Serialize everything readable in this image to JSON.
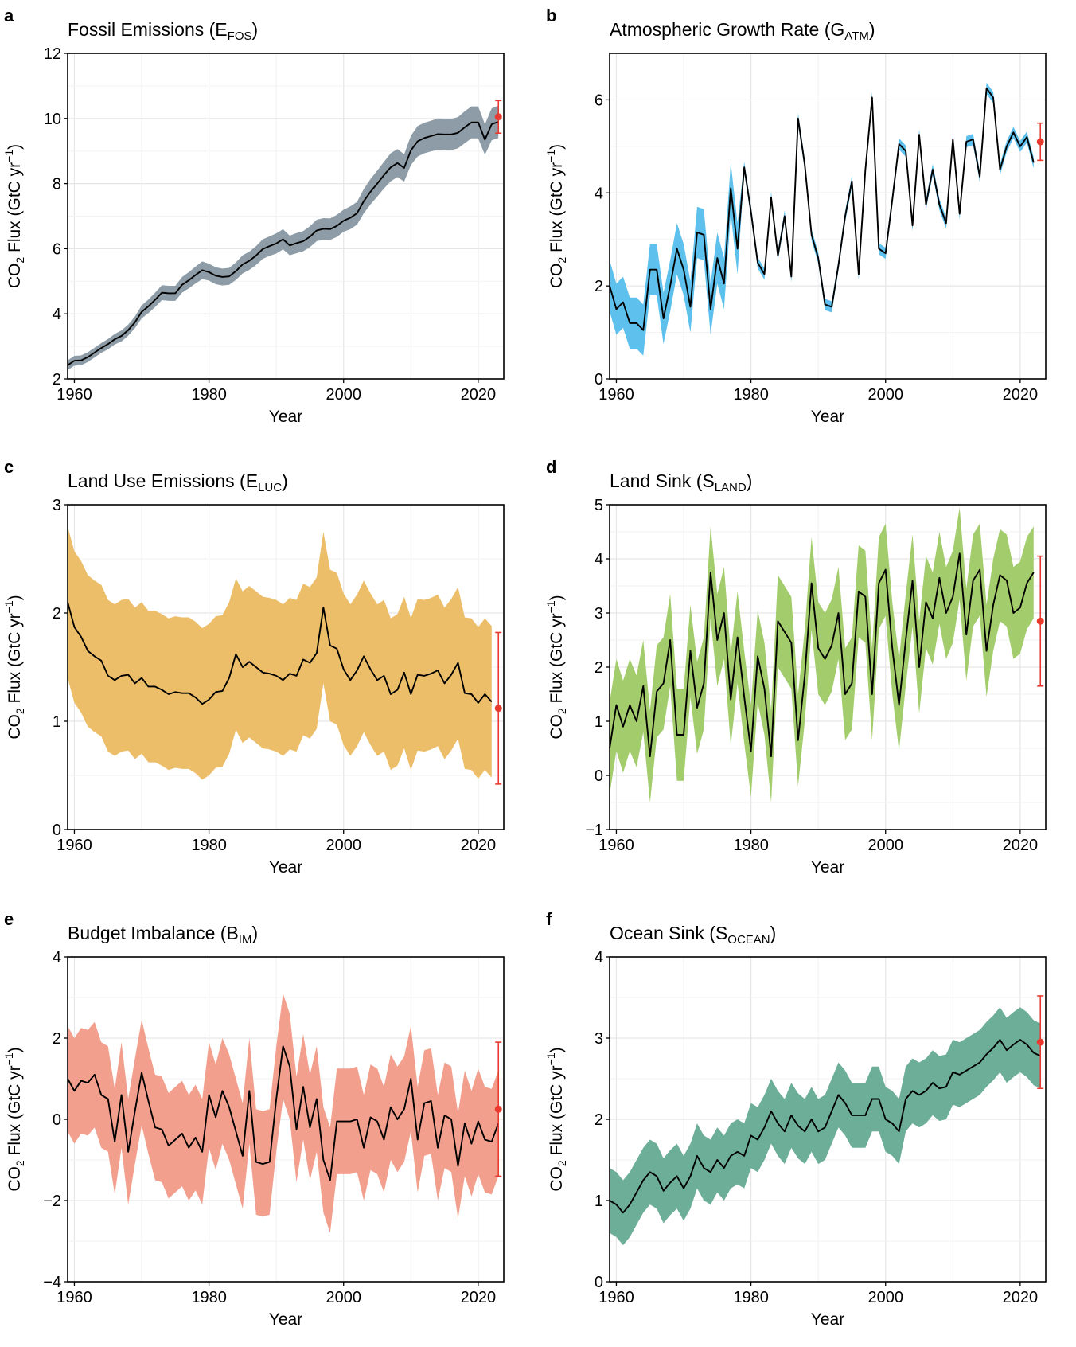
{
  "figure": {
    "background": "#ffffff"
  },
  "chart_data": [
    {
      "id": "a",
      "type": "line",
      "panel_letter": "a",
      "title": "Fossil Emissions (E",
      "title_sub": "FOS",
      "title_end": ")",
      "xlabel": "Year",
      "ylabel_pre": "CO",
      "ylabel_sub": "2",
      "ylabel_mid": " Flux (GtC yr",
      "ylabel_sup": "−1",
      "ylabel_end": ")",
      "xlim": [
        1959,
        2023.8
      ],
      "ylim": [
        2,
        12
      ],
      "xticks": [
        1960,
        1980,
        2000,
        2020
      ],
      "yticks": [
        2,
        4,
        6,
        8,
        10,
        12
      ],
      "grid": true,
      "band_color": "#8d9ca6",
      "x_start": 1959,
      "values": [
        2.42,
        2.56,
        2.57,
        2.67,
        2.81,
        2.95,
        3.07,
        3.22,
        3.32,
        3.5,
        3.74,
        4.06,
        4.23,
        4.43,
        4.65,
        4.63,
        4.63,
        4.89,
        5.03,
        5.19,
        5.34,
        5.28,
        5.17,
        5.13,
        5.15,
        5.31,
        5.52,
        5.63,
        5.79,
        5.99,
        6.08,
        6.16,
        6.29,
        6.1,
        6.17,
        6.23,
        6.37,
        6.56,
        6.61,
        6.6,
        6.7,
        6.86,
        6.95,
        7.09,
        7.46,
        7.75,
        8.0,
        8.26,
        8.5,
        8.63,
        8.48,
        9.02,
        9.3,
        9.4,
        9.46,
        9.52,
        9.51,
        9.51,
        9.56,
        9.73,
        9.88,
        9.88,
        9.35,
        9.82,
        9.9
      ],
      "band_halfwidth": [
        0.15,
        0.15,
        0.15,
        0.15,
        0.15,
        0.15,
        0.16,
        0.16,
        0.17,
        0.17,
        0.18,
        0.2,
        0.21,
        0.22,
        0.23,
        0.23,
        0.23,
        0.24,
        0.25,
        0.26,
        0.27,
        0.26,
        0.26,
        0.26,
        0.26,
        0.27,
        0.28,
        0.28,
        0.29,
        0.3,
        0.3,
        0.31,
        0.31,
        0.3,
        0.31,
        0.31,
        0.32,
        0.33,
        0.33,
        0.33,
        0.34,
        0.34,
        0.35,
        0.35,
        0.37,
        0.39,
        0.4,
        0.41,
        0.43,
        0.43,
        0.42,
        0.45,
        0.47,
        0.47,
        0.47,
        0.48,
        0.48,
        0.48,
        0.48,
        0.49,
        0.49,
        0.49,
        0.47,
        0.49,
        0.5
      ],
      "projection": {
        "x": 2023,
        "y": 10.05,
        "low": 9.55,
        "high": 10.55,
        "color": "#e83a2f"
      }
    },
    {
      "id": "b",
      "type": "line",
      "panel_letter": "b",
      "title": "Atmospheric Growth Rate (G",
      "title_sub": "ATM",
      "title_end": ")",
      "xlabel": "Year",
      "ylabel_pre": "CO",
      "ylabel_sub": "2",
      "ylabel_mid": " Flux (GtC yr",
      "ylabel_sup": "−1",
      "ylabel_end": ")",
      "xlim": [
        1959,
        2023.8
      ],
      "ylim": [
        0,
        7
      ],
      "xticks": [
        1960,
        1980,
        2000,
        2020
      ],
      "yticks": [
        0,
        2,
        4,
        6
      ],
      "grid": true,
      "band_color": "#5ec0ec",
      "x_start": 1959,
      "values": [
        2.0,
        1.5,
        1.65,
        1.2,
        1.2,
        1.05,
        2.35,
        2.35,
        1.3,
        2.0,
        2.8,
        2.35,
        1.55,
        3.15,
        3.1,
        1.5,
        2.6,
        2.05,
        4.1,
        2.8,
        4.55,
        3.6,
        2.5,
        2.25,
        3.9,
        2.65,
        3.5,
        2.2,
        5.6,
        4.6,
        3.1,
        2.6,
        1.6,
        1.55,
        2.45,
        3.5,
        4.25,
        2.25,
        4.5,
        6.05,
        2.8,
        2.7,
        3.85,
        5.05,
        4.9,
        3.3,
        5.25,
        3.75,
        4.5,
        3.75,
        3.35,
        5.15,
        3.55,
        5.1,
        5.15,
        4.35,
        6.25,
        6.05,
        4.5,
        5.0,
        5.3,
        5.0,
        5.2,
        4.65
      ],
      "band_halfwidth": [
        0.55,
        0.55,
        0.55,
        0.55,
        0.55,
        0.55,
        0.55,
        0.55,
        0.55,
        0.55,
        0.55,
        0.55,
        0.55,
        0.55,
        0.55,
        0.55,
        0.55,
        0.55,
        0.55,
        0.55,
        0.12,
        0.12,
        0.12,
        0.12,
        0.12,
        0.12,
        0.12,
        0.12,
        0.12,
        0.12,
        0.12,
        0.12,
        0.12,
        0.12,
        0.12,
        0.12,
        0.12,
        0.12,
        0.12,
        0.12,
        0.12,
        0.12,
        0.12,
        0.12,
        0.12,
        0.12,
        0.12,
        0.12,
        0.12,
        0.12,
        0.12,
        0.12,
        0.12,
        0.12,
        0.12,
        0.12,
        0.12,
        0.12,
        0.12,
        0.12,
        0.12,
        0.12,
        0.12,
        0.12
      ],
      "projection": {
        "x": 2023,
        "y": 5.1,
        "low": 4.7,
        "high": 5.5,
        "color": "#e83a2f"
      }
    },
    {
      "id": "c",
      "type": "line",
      "panel_letter": "c",
      "title": "Land Use Emissions (E",
      "title_sub": "LUC",
      "title_end": ")",
      "xlabel": "Year",
      "ylabel_pre": "CO",
      "ylabel_sub": "2",
      "ylabel_mid": " Flux (GtC yr",
      "ylabel_sup": "−1",
      "ylabel_end": ")",
      "xlim": [
        1959,
        2023.8
      ],
      "ylim": [
        0,
        3
      ],
      "xticks": [
        1960,
        1980,
        2000,
        2020
      ],
      "yticks": [
        0,
        1,
        2,
        3
      ],
      "grid": true,
      "band_color": "#edbe6a",
      "x_start": 1959,
      "values": [
        2.1,
        1.87,
        1.78,
        1.65,
        1.6,
        1.56,
        1.42,
        1.38,
        1.42,
        1.43,
        1.35,
        1.4,
        1.32,
        1.32,
        1.29,
        1.25,
        1.27,
        1.26,
        1.26,
        1.22,
        1.16,
        1.2,
        1.27,
        1.28,
        1.4,
        1.62,
        1.5,
        1.55,
        1.5,
        1.45,
        1.44,
        1.42,
        1.38,
        1.44,
        1.42,
        1.57,
        1.54,
        1.63,
        2.05,
        1.7,
        1.67,
        1.48,
        1.38,
        1.47,
        1.6,
        1.48,
        1.38,
        1.42,
        1.25,
        1.29,
        1.45,
        1.25,
        1.43,
        1.42,
        1.44,
        1.47,
        1.35,
        1.43,
        1.54,
        1.26,
        1.25,
        1.17,
        1.25,
        1.18
      ],
      "band_halfwidth": [
        0.7,
        0.7,
        0.7,
        0.7,
        0.7,
        0.7,
        0.7,
        0.7,
        0.7,
        0.7,
        0.7,
        0.7,
        0.7,
        0.7,
        0.7,
        0.7,
        0.7,
        0.7,
        0.7,
        0.7,
        0.7,
        0.7,
        0.7,
        0.7,
        0.7,
        0.7,
        0.7,
        0.7,
        0.7,
        0.7,
        0.7,
        0.7,
        0.7,
        0.7,
        0.7,
        0.7,
        0.7,
        0.7,
        0.7,
        0.7,
        0.7,
        0.7,
        0.7,
        0.7,
        0.7,
        0.7,
        0.7,
        0.7,
        0.7,
        0.7,
        0.7,
        0.7,
        0.7,
        0.7,
        0.7,
        0.7,
        0.7,
        0.7,
        0.7,
        0.7,
        0.7,
        0.7,
        0.7,
        0.7
      ],
      "projection": {
        "x": 2023,
        "y": 1.12,
        "low": 0.42,
        "high": 1.82,
        "color": "#e83a2f"
      }
    },
    {
      "id": "d",
      "type": "line",
      "panel_letter": "d",
      "title": "Land Sink (S",
      "title_sub": "LAND",
      "title_end": ")",
      "xlabel": "Year",
      "ylabel_pre": "CO",
      "ylabel_sub": "2",
      "ylabel_mid": " Flux (GtC yr",
      "ylabel_sup": "−1",
      "ylabel_end": ")",
      "xlim": [
        1959,
        2023.8
      ],
      "ylim": [
        -1,
        5
      ],
      "xticks": [
        1960,
        1980,
        2000,
        2020
      ],
      "yticks": [
        -1,
        0,
        1,
        2,
        3,
        4,
        5
      ],
      "grid": true,
      "band_color": "#a3cd6c",
      "x_start": 1959,
      "values": [
        0.5,
        1.3,
        0.9,
        1.3,
        1.0,
        1.65,
        0.35,
        1.55,
        1.7,
        2.5,
        0.75,
        0.75,
        2.3,
        1.25,
        1.7,
        3.75,
        2.5,
        3.0,
        1.4,
        2.55,
        1.45,
        0.45,
        2.2,
        1.6,
        0.35,
        2.85,
        2.65,
        2.45,
        0.65,
        1.85,
        3.55,
        2.35,
        2.15,
        2.4,
        3.0,
        1.5,
        1.7,
        3.4,
        3.3,
        1.5,
        3.55,
        3.8,
        2.35,
        1.3,
        2.5,
        3.6,
        2.0,
        3.2,
        2.9,
        3.65,
        3.0,
        3.3,
        4.1,
        2.6,
        3.6,
        3.8,
        2.3,
        3.15,
        3.7,
        3.6,
        3.0,
        3.1,
        3.55,
        3.75
      ],
      "band_halfwidth": [
        0.85,
        0.85,
        0.85,
        0.85,
        0.85,
        0.85,
        0.85,
        0.85,
        0.85,
        0.85,
        0.85,
        0.85,
        0.85,
        0.85,
        0.85,
        0.85,
        0.85,
        0.85,
        0.85,
        0.85,
        0.85,
        0.85,
        0.85,
        0.85,
        0.85,
        0.85,
        0.85,
        0.85,
        0.85,
        0.85,
        0.85,
        0.85,
        0.85,
        0.85,
        0.85,
        0.85,
        0.85,
        0.85,
        0.85,
        0.85,
        0.85,
        0.85,
        0.85,
        0.85,
        0.85,
        0.85,
        0.85,
        0.85,
        0.85,
        0.85,
        0.85,
        0.85,
        0.85,
        0.85,
        0.85,
        0.85,
        0.85,
        0.85,
        0.85,
        0.85,
        0.85,
        0.85,
        0.85,
        0.85
      ],
      "projection": {
        "x": 2023,
        "y": 2.85,
        "low": 1.65,
        "high": 4.05,
        "color": "#e83a2f"
      }
    },
    {
      "id": "e",
      "type": "line",
      "panel_letter": "e",
      "title": "Budget Imbalance (B",
      "title_sub": "IM",
      "title_end": ")",
      "xlabel": "Year",
      "ylabel_pre": "CO",
      "ylabel_sub": "2",
      "ylabel_mid": " Flux (GtC yr",
      "ylabel_sup": "−1",
      "ylabel_end": ")",
      "xlim": [
        1959,
        2023.8
      ],
      "ylim": [
        -4,
        4
      ],
      "xticks": [
        1960,
        1980,
        2000,
        2020
      ],
      "yticks": [
        -4,
        -2,
        0,
        2,
        4
      ],
      "grid": true,
      "band_color": "#f2a08d",
      "x_start": 1959,
      "values": [
        1.0,
        0.7,
        0.95,
        0.9,
        1.1,
        0.6,
        0.5,
        -0.55,
        0.6,
        -0.8,
        0.2,
        1.15,
        0.45,
        -0.2,
        -0.25,
        -0.65,
        -0.5,
        -0.35,
        -0.7,
        -0.45,
        -0.8,
        0.6,
        0.05,
        0.7,
        0.3,
        -0.3,
        -0.9,
        0.7,
        -1.05,
        -1.1,
        -1.05,
        0.5,
        1.8,
        1.3,
        -0.25,
        0.8,
        -0.2,
        0.5,
        -1.0,
        -1.5,
        -0.05,
        -0.05,
        -0.05,
        0.0,
        -0.7,
        0.05,
        -0.05,
        -0.5,
        0.3,
        0.0,
        0.25,
        1.0,
        -0.5,
        0.4,
        0.45,
        -0.7,
        0.1,
        0.0,
        -1.15,
        -0.1,
        -0.6,
        -0.05,
        -0.5,
        -0.55,
        -0.1
      ],
      "band_halfwidth": [
        1.3,
        1.3,
        1.3,
        1.3,
        1.3,
        1.3,
        1.3,
        1.3,
        1.3,
        1.3,
        1.3,
        1.3,
        1.3,
        1.3,
        1.3,
        1.3,
        1.3,
        1.3,
        1.3,
        1.3,
        1.3,
        1.3,
        1.3,
        1.3,
        1.3,
        1.3,
        1.3,
        1.3,
        1.3,
        1.3,
        1.3,
        1.3,
        1.3,
        1.3,
        1.3,
        1.3,
        1.3,
        1.3,
        1.3,
        1.3,
        1.3,
        1.3,
        1.3,
        1.3,
        1.3,
        1.3,
        1.3,
        1.3,
        1.3,
        1.3,
        1.3,
        1.3,
        1.3,
        1.3,
        1.3,
        1.3,
        1.3,
        1.3,
        1.3,
        1.3,
        1.3,
        1.3,
        1.3,
        1.3,
        1.3
      ],
      "projection": {
        "x": 2023,
        "y": 0.25,
        "low": -1.4,
        "high": 1.9,
        "color": "#e83a2f"
      }
    },
    {
      "id": "f",
      "type": "line",
      "panel_letter": "f",
      "title": "Ocean Sink (S",
      "title_sub": "OCEAN",
      "title_end": ")",
      "xlabel": "Year",
      "ylabel_pre": "CO",
      "ylabel_sub": "2",
      "ylabel_mid": " Flux (GtC yr",
      "ylabel_sup": "−1",
      "ylabel_end": ")",
      "xlim": [
        1959,
        2023.8
      ],
      "ylim": [
        0,
        4
      ],
      "xticks": [
        1960,
        1980,
        2000,
        2020
      ],
      "yticks": [
        0,
        1,
        2,
        3,
        4
      ],
      "grid": true,
      "band_color": "#6dae98",
      "x_start": 1959,
      "values": [
        1.0,
        0.95,
        0.85,
        0.95,
        1.1,
        1.25,
        1.35,
        1.3,
        1.12,
        1.22,
        1.3,
        1.15,
        1.3,
        1.55,
        1.4,
        1.35,
        1.5,
        1.4,
        1.55,
        1.6,
        1.55,
        1.8,
        1.75,
        1.9,
        2.1,
        1.95,
        1.85,
        2.05,
        1.92,
        1.85,
        2.0,
        1.85,
        1.9,
        2.1,
        2.3,
        2.2,
        2.05,
        2.05,
        2.05,
        2.25,
        2.25,
        2.0,
        1.95,
        1.85,
        2.25,
        2.35,
        2.3,
        2.35,
        2.45,
        2.38,
        2.4,
        2.58,
        2.55,
        2.6,
        2.65,
        2.7,
        2.8,
        2.88,
        2.98,
        2.85,
        2.92,
        2.98,
        2.92,
        2.82,
        2.78
      ],
      "band_halfwidth": [
        0.4,
        0.4,
        0.4,
        0.4,
        0.4,
        0.4,
        0.4,
        0.4,
        0.4,
        0.4,
        0.4,
        0.4,
        0.4,
        0.4,
        0.4,
        0.4,
        0.4,
        0.4,
        0.4,
        0.4,
        0.4,
        0.4,
        0.4,
        0.4,
        0.4,
        0.4,
        0.4,
        0.4,
        0.4,
        0.4,
        0.4,
        0.4,
        0.4,
        0.4,
        0.4,
        0.4,
        0.4,
        0.4,
        0.4,
        0.4,
        0.4,
        0.4,
        0.4,
        0.4,
        0.4,
        0.4,
        0.4,
        0.4,
        0.4,
        0.4,
        0.4,
        0.4,
        0.4,
        0.4,
        0.4,
        0.4,
        0.4,
        0.4,
        0.4,
        0.4,
        0.4,
        0.4,
        0.4,
        0.4,
        0.4
      ],
      "projection": {
        "x": 2023,
        "y": 2.95,
        "low": 2.38,
        "high": 3.52,
        "color": "#e83a2f"
      }
    }
  ]
}
